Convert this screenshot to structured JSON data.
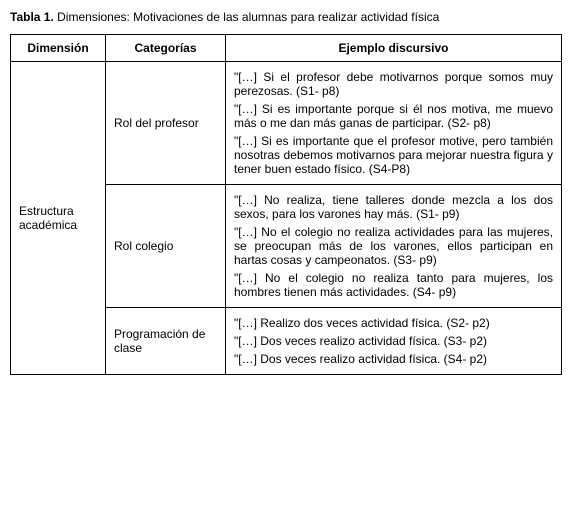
{
  "title_label": "Tabla 1.",
  "title_desc": "Dimensiones: Motivaciones de las alumnas para realizar actividad física",
  "headers": {
    "dimension": "Dimensión",
    "categorias": "Categorías",
    "ejemplo": "Ejemplo discursivo"
  },
  "dimension_label": "Estructura académica",
  "rows": [
    {
      "categoria": "Rol del profesor",
      "quotes": [
        "\"[…] Si el profesor debe motivarnos porque somos muy perezosas. (S1- p8)",
        "\"[…] Si es importante porque si él nos motiva, me muevo más o me dan más ganas de participar. (S2- p8)",
        "\"[…] Si es importante que el profesor motive, pero también nosotras debemos motivarnos para mejorar nuestra figura y tener buen estado físico. (S4-P8)"
      ]
    },
    {
      "categoria": "Rol colegio",
      "quotes": [
        "\"[…] No realiza, tiene talleres donde mezcla a los dos sexos, para los varones hay más. (S1- p9)",
        "\"[…] No el colegio no realiza actividades para las mujeres, se preocupan más de los varones, ellos participan en hartas cosas y campeonatos. (S3- p9)",
        "\"[…] No el colegio no realiza tanto para mujeres, los hombres tienen más actividades. (S4- p9)"
      ]
    },
    {
      "categoria": "Programación de clase",
      "quotes": [
        "\"[…] Realizo dos veces actividad física. (S2- p2)",
        "\"[…] Dos veces realizo actividad física. (S3- p2)",
        "\"[…] Dos veces realizo actividad física. (S4- p2)"
      ]
    }
  ]
}
